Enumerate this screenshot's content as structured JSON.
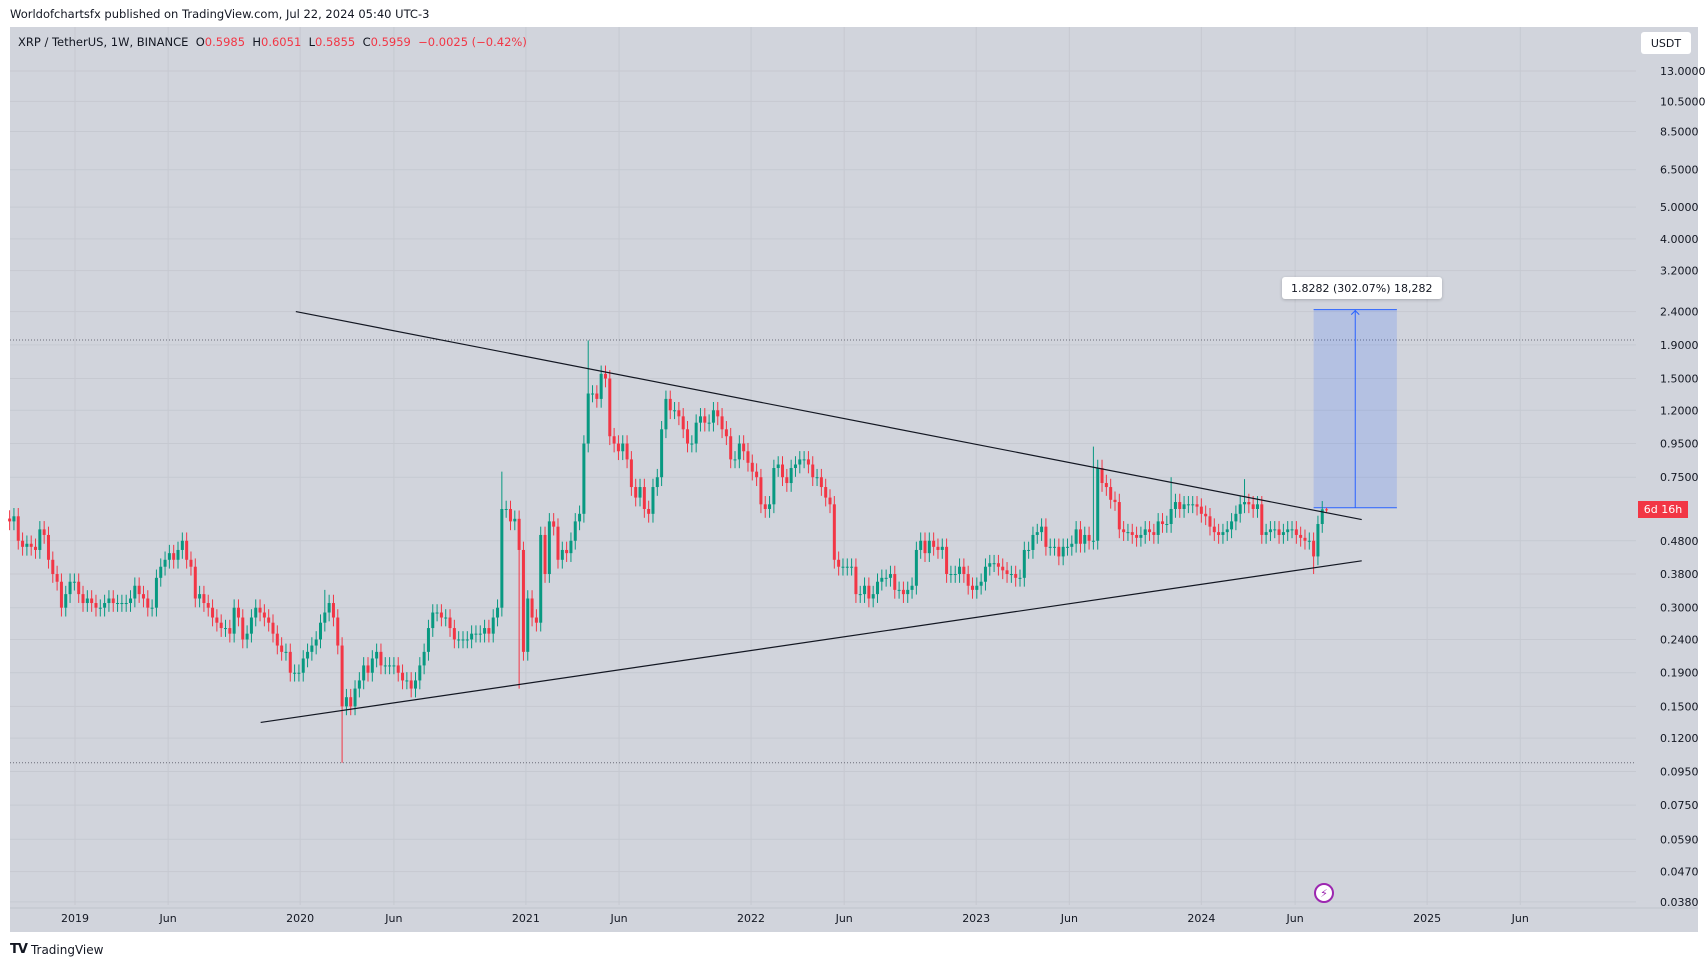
{
  "header": {
    "published": "Worldofchartsfx published on TradingView.com, Jul 22, 2024 05:40 UTC-3",
    "symbol": "XRP / TetherUS, 1W, BINANCE",
    "o_label": "O",
    "o": "0.5985",
    "h_label": "H",
    "h": "0.6051",
    "l_label": "L",
    "l": "0.5855",
    "c_label": "C",
    "c": "0.5959",
    "change": "−0.0025 (−0.42%)"
  },
  "currency_button": "USDT",
  "countdown": "6d 16h",
  "measure_label": "1.8282 (302.07%) 18,282",
  "footer": {
    "logo": "TV",
    "brand": "TradingView"
  },
  "icons": {
    "events": "lightning-icon"
  },
  "colors": {
    "up": "#089981",
    "down": "#f23645",
    "background": "#d1d4dc",
    "measure": "#2962ff",
    "countdown": "#f23645"
  },
  "chart_data": {
    "type": "candlestick",
    "scale": "log",
    "grid": true,
    "interval": "1W",
    "first_week": "2018-09-17",
    "ylim": [
      0.038,
      13
    ],
    "y_ticks": [
      "13.0000",
      "10.5000",
      "8.5000",
      "6.5000",
      "5.0000",
      "4.0000",
      "3.2000",
      "2.4000",
      "1.9000",
      "1.5000",
      "1.2000",
      "0.9500",
      "0.7500",
      "0.4800",
      "0.3800",
      "0.3000",
      "0.2400",
      "0.1900",
      "0.1500",
      "0.1200",
      "0.0950",
      "0.0750",
      "0.0590",
      "0.0470",
      "0.0380"
    ],
    "x_ticks": [
      {
        "label": "2019",
        "date": "2019-01-01"
      },
      {
        "label": "Jun",
        "date": "2019-06-01"
      },
      {
        "label": "2020",
        "date": "2020-01-01"
      },
      {
        "label": "Jun",
        "date": "2020-06-01"
      },
      {
        "label": "2021",
        "date": "2021-01-01"
      },
      {
        "label": "Jun",
        "date": "2021-06-01"
      },
      {
        "label": "2022",
        "date": "2022-01-01"
      },
      {
        "label": "Jun",
        "date": "2022-06-01"
      },
      {
        "label": "2023",
        "date": "2023-01-01"
      },
      {
        "label": "Jun",
        "date": "2023-06-01"
      },
      {
        "label": "2024",
        "date": "2024-01-01"
      },
      {
        "label": "Jun",
        "date": "2024-06-01"
      },
      {
        "label": "2025",
        "date": "2025-01-01"
      },
      {
        "label": "Jun",
        "date": "2025-06-01"
      }
    ],
    "weekly_closes": [
      0.55,
      0.57,
      0.48,
      0.46,
      0.47,
      0.46,
      0.45,
      0.52,
      0.5,
      0.42,
      0.38,
      0.36,
      0.3,
      0.33,
      0.36,
      0.36,
      0.33,
      0.31,
      0.32,
      0.31,
      0.3,
      0.3,
      0.31,
      0.32,
      0.31,
      0.31,
      0.31,
      0.31,
      0.32,
      0.35,
      0.33,
      0.32,
      0.3,
      0.3,
      0.37,
      0.4,
      0.42,
      0.44,
      0.42,
      0.45,
      0.48,
      0.42,
      0.4,
      0.32,
      0.33,
      0.31,
      0.3,
      0.28,
      0.27,
      0.26,
      0.26,
      0.25,
      0.3,
      0.28,
      0.24,
      0.25,
      0.28,
      0.3,
      0.29,
      0.28,
      0.27,
      0.25,
      0.23,
      0.22,
      0.22,
      0.19,
      0.19,
      0.19,
      0.21,
      0.22,
      0.23,
      0.24,
      0.27,
      0.29,
      0.31,
      0.28,
      0.23,
      0.15,
      0.16,
      0.15,
      0.17,
      0.18,
      0.2,
      0.19,
      0.21,
      0.22,
      0.2,
      0.2,
      0.2,
      0.2,
      0.19,
      0.18,
      0.18,
      0.17,
      0.18,
      0.2,
      0.22,
      0.26,
      0.29,
      0.29,
      0.28,
      0.28,
      0.26,
      0.24,
      0.24,
      0.24,
      0.24,
      0.25,
      0.25,
      0.25,
      0.26,
      0.25,
      0.28,
      0.3,
      0.6,
      0.6,
      0.55,
      0.56,
      0.45,
      0.22,
      0.32,
      0.28,
      0.27,
      0.5,
      0.38,
      0.55,
      0.53,
      0.42,
      0.45,
      0.44,
      0.48,
      0.55,
      0.58,
      0.95,
      1.35,
      1.35,
      1.3,
      1.55,
      1.5,
      1.0,
      0.95,
      0.9,
      0.95,
      0.85,
      0.7,
      0.65,
      0.7,
      0.6,
      0.58,
      0.7,
      0.75,
      1.05,
      1.3,
      1.2,
      1.2,
      1.15,
      1.05,
      0.95,
      0.95,
      1.1,
      1.15,
      1.1,
      1.1,
      1.2,
      1.15,
      1.05,
      1.0,
      0.85,
      0.85,
      0.95,
      0.9,
      0.83,
      0.78,
      0.75,
      0.62,
      0.6,
      0.62,
      0.8,
      0.82,
      0.75,
      0.72,
      0.8,
      0.82,
      0.85,
      0.85,
      0.82,
      0.75,
      0.75,
      0.7,
      0.65,
      0.62,
      0.42,
      0.4,
      0.4,
      0.4,
      0.4,
      0.33,
      0.33,
      0.35,
      0.32,
      0.33,
      0.36,
      0.37,
      0.37,
      0.38,
      0.34,
      0.34,
      0.33,
      0.34,
      0.35,
      0.45,
      0.48,
      0.44,
      0.48,
      0.46,
      0.45,
      0.46,
      0.38,
      0.38,
      0.38,
      0.4,
      0.38,
      0.35,
      0.34,
      0.35,
      0.36,
      0.4,
      0.41,
      0.41,
      0.4,
      0.39,
      0.38,
      0.38,
      0.37,
      0.37,
      0.45,
      0.45,
      0.5,
      0.51,
      0.53,
      0.46,
      0.46,
      0.46,
      0.43,
      0.46,
      0.46,
      0.47,
      0.52,
      0.47,
      0.5,
      0.48,
      0.48,
      0.8,
      0.72,
      0.7,
      0.64,
      0.63,
      0.52,
      0.51,
      0.51,
      0.5,
      0.49,
      0.5,
      0.52,
      0.51,
      0.5,
      0.55,
      0.54,
      0.54,
      0.6,
      0.63,
      0.6,
      0.62,
      0.62,
      0.62,
      0.61,
      0.58,
      0.57,
      0.53,
      0.51,
      0.5,
      0.51,
      0.52,
      0.55,
      0.58,
      0.62,
      0.63,
      0.62,
      0.6,
      0.62,
      0.5,
      0.51,
      0.52,
      0.52,
      0.5,
      0.51,
      0.52,
      0.52,
      0.5,
      0.49,
      0.48,
      0.48,
      0.43,
      0.54,
      0.5985,
      0.5959
    ],
    "last_candle": {
      "open": 0.5985,
      "high": 0.6051,
      "low": 0.5855,
      "close": 0.5959
    },
    "wick_extremes": [
      {
        "date": "2020-02-10",
        "high": 0.34
      },
      {
        "date": "2020-03-09",
        "low": 0.101
      },
      {
        "date": "2020-11-23",
        "high": 0.78
      },
      {
        "date": "2020-12-21",
        "low": 0.17
      },
      {
        "date": "2021-04-12",
        "high": 1.96
      },
      {
        "date": "2023-07-10",
        "high": 0.93
      },
      {
        "date": "2023-11-13",
        "high": 0.75
      },
      {
        "date": "2024-03-11",
        "high": 0.74
      },
      {
        "date": "2024-07-01",
        "low": 0.38
      }
    ],
    "high_low_lines": [
      1.966,
      0.101
    ],
    "trendlines": [
      {
        "from": {
          "date": "2019-12-25",
          "price": 2.4
        },
        "to": {
          "date": "2024-09-17",
          "price": 0.557
        }
      },
      {
        "from": {
          "date": "2019-10-29",
          "price": 0.134
        },
        "to": {
          "date": "2024-09-17",
          "price": 0.417
        }
      }
    ],
    "price_range": {
      "from_date": "2024-07-01",
      "to_date": "2024-11-13",
      "low": 0.6052,
      "high": 2.4334
    }
  }
}
